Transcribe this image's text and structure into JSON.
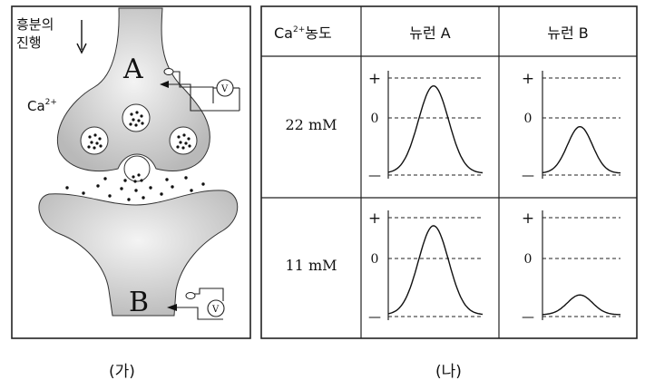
{
  "panel_a": {
    "label": "(가)",
    "direction_text_line1": "흥분의",
    "direction_text_line2": "진행",
    "ion_label_base": "Ca",
    "ion_label_charge": "2+",
    "neuron_a_label": "A",
    "neuron_b_label": "B",
    "voltmeter_symbol": "V"
  },
  "panel_b": {
    "label": "(나)",
    "header_col0_base": "Ca",
    "header_col0_charge": "2+",
    "header_col0_suffix": "농도",
    "header_col1": "뉴런 A",
    "header_col2": "뉴런 B",
    "rows": [
      {
        "concentration": "22 mM"
      },
      {
        "concentration": "11 mM"
      }
    ],
    "axis_plus": "+",
    "axis_zero": "0",
    "axis_minus": "—"
  },
  "chart_data": {
    "type": "line",
    "y_levels": [
      "+",
      "0",
      "—"
    ],
    "series": [
      {
        "row": "22 mM",
        "column": "뉴런 A",
        "peak_level": 0.9
      },
      {
        "row": "22 mM",
        "column": "뉴런 B",
        "peak_level": 0.48
      },
      {
        "row": "11 mM",
        "column": "뉴런 A",
        "peak_level": 0.9
      },
      {
        "row": "11 mM",
        "column": "뉴런 B",
        "peak_level": 0.2
      }
    ],
    "note": "peak_level is relative height of the potential curve between baseline (—, 0) and + line (1)"
  }
}
